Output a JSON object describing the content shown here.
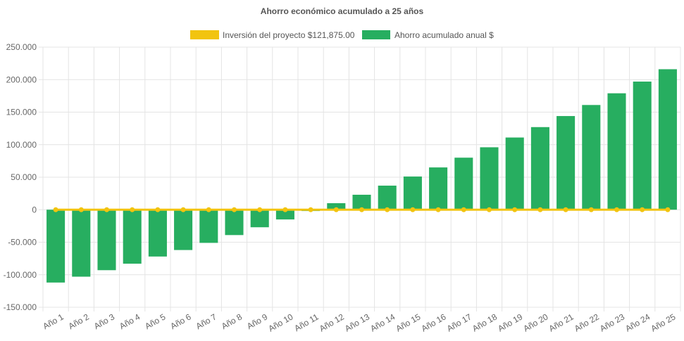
{
  "chart_data": {
    "type": "bar",
    "title": "Ahorro económico acumulado a 25 años",
    "categories": [
      "Año 1",
      "Año 2",
      "Año 3",
      "Año 4",
      "Año 5",
      "Año 6",
      "Año 7",
      "Año 8",
      "Año 9",
      "Año 10",
      "Año 11",
      "Año 12",
      "Año 13",
      "Año 14",
      "Año 15",
      "Año 16",
      "Año 17",
      "Año 18",
      "Año 19",
      "Año 20",
      "Año 21",
      "Año 22",
      "Año 23",
      "Año 24",
      "Año 25"
    ],
    "series": [
      {
        "name": "Inversión del proyecto $121,875.00",
        "type": "line",
        "color": "#f2c40f",
        "values": [
          0,
          0,
          0,
          0,
          0,
          0,
          0,
          0,
          0,
          0,
          0,
          0,
          0,
          0,
          0,
          0,
          0,
          0,
          0,
          0,
          0,
          0,
          0,
          0,
          0
        ]
      },
      {
        "name": "Ahorro acumulado anual $",
        "type": "bar",
        "color": "#27ae60",
        "values": [
          -112000,
          -103000,
          -93000,
          -83000,
          -72000,
          -62000,
          -51000,
          -39000,
          -27000,
          -15000,
          -2000,
          10000,
          23000,
          37000,
          51000,
          65000,
          80000,
          96000,
          111000,
          127000,
          144000,
          161000,
          179000,
          197000,
          216000
        ]
      }
    ],
    "ylim": [
      -150000,
      250000
    ],
    "y_ticks": [
      250000,
      200000,
      150000,
      100000,
      50000,
      0,
      -50000,
      -100000,
      -150000
    ],
    "y_tick_labels": [
      "250.000",
      "200.000",
      "150.000",
      "100.000",
      "50.000",
      "0",
      "-50.000",
      "-100.000",
      "-150.000"
    ],
    "grid": true,
    "legend_position": "top"
  }
}
